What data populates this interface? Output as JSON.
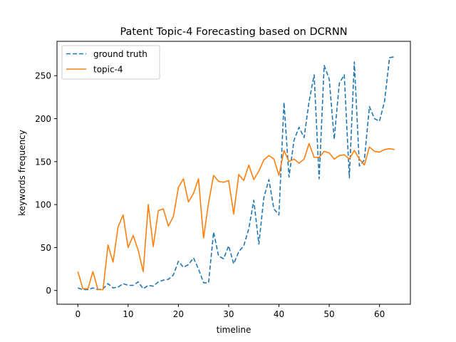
{
  "chart_data": {
    "type": "line",
    "title": "Patent Topic-4 Forecasting based on DCRNN",
    "xlabel": "timeline",
    "ylabel": "keywords frequency",
    "xlim": [
      -4.15,
      66.15
    ],
    "ylim": [
      -16,
      290
    ],
    "xticks": [
      0,
      10,
      20,
      30,
      40,
      50,
      60
    ],
    "yticks": [
      0,
      50,
      100,
      150,
      200,
      250
    ],
    "legend": "top-left",
    "grid": false,
    "series": [
      {
        "name": "ground truth",
        "style": "dashed",
        "color": "#1f77b4",
        "x": [
          0,
          1,
          2,
          3,
          4,
          5,
          6,
          7,
          8,
          9,
          10,
          11,
          12,
          13,
          14,
          15,
          16,
          17,
          18,
          19,
          20,
          21,
          22,
          23,
          24,
          25,
          26,
          27,
          28,
          29,
          30,
          31,
          32,
          33,
          34,
          35,
          36,
          37,
          38,
          39,
          40,
          41,
          42,
          43,
          44,
          45,
          46,
          47,
          48,
          49,
          50,
          51,
          52,
          53,
          54,
          55,
          56,
          57,
          58,
          59,
          60,
          61,
          62,
          63
        ],
        "y": [
          3,
          1,
          1,
          3,
          1,
          2,
          8,
          3,
          4,
          8,
          6,
          6,
          10,
          2,
          6,
          5,
          10,
          12,
          13,
          18,
          34,
          27,
          30,
          38,
          25,
          9,
          9,
          68,
          40,
          37,
          52,
          31,
          45,
          52,
          72,
          105,
          54,
          108,
          129,
          95,
          88,
          219,
          132,
          175,
          190,
          178,
          220,
          251,
          130,
          262,
          246,
          176,
          241,
          251,
          131,
          266,
          145,
          152,
          214,
          200,
          197,
          220,
          271,
          272
        ]
      },
      {
        "name": "topic-4",
        "style": "solid",
        "color": "#ff7f0e",
        "x": [
          0,
          1,
          2,
          3,
          4,
          5,
          6,
          7,
          8,
          9,
          10,
          11,
          12,
          13,
          14,
          15,
          16,
          17,
          18,
          19,
          20,
          21,
          22,
          23,
          24,
          25,
          26,
          27,
          28,
          29,
          30,
          31,
          32,
          33,
          34,
          35,
          36,
          37,
          38,
          39,
          40,
          41,
          42,
          43,
          44,
          45,
          46,
          47,
          48,
          49,
          50,
          51,
          52,
          53,
          54,
          55,
          56,
          57,
          58,
          59,
          60,
          61,
          62,
          63
        ],
        "y": [
          22,
          2,
          2,
          22,
          1,
          1,
          53,
          33,
          74,
          88,
          50,
          64,
          47,
          22,
          100,
          51,
          93,
          95,
          75,
          86,
          120,
          130,
          103,
          113,
          130,
          61,
          102,
          134,
          127,
          126,
          128,
          89,
          135,
          128,
          146,
          129,
          139,
          152,
          157,
          153,
          134,
          163,
          150,
          153,
          148,
          153,
          171,
          155,
          155,
          162,
          160,
          153,
          157,
          158,
          153,
          163,
          153,
          146,
          167,
          162,
          161,
          164,
          165,
          164
        ]
      }
    ]
  }
}
